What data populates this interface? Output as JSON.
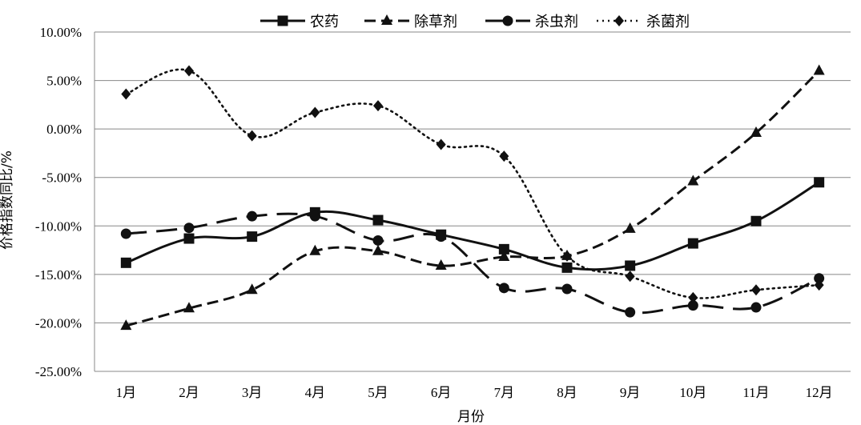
{
  "chart_data": {
    "type": "line",
    "title": "",
    "xlabel": "月份",
    "ylabel": "价格指数同比/%",
    "categories": [
      "1月",
      "2月",
      "3月",
      "4月",
      "5月",
      "6月",
      "7月",
      "8月",
      "9月",
      "10月",
      "11月",
      "12月"
    ],
    "yticks": [
      "10.00%",
      "5.00%",
      "0.00%",
      "-5.00%",
      "-10.00%",
      "-15.00%",
      "-20.00%",
      "-25.00%"
    ],
    "ylim": [
      -25,
      10
    ],
    "grid": "horizontal",
    "legend_position": "top",
    "series": [
      {
        "name": "农药",
        "style": "solid",
        "marker": "square",
        "values": [
          -13.8,
          -11.3,
          -11.1,
          -8.6,
          -9.4,
          -10.9,
          -12.4,
          -14.3,
          -14.1,
          -11.8,
          -9.5,
          -5.5
        ]
      },
      {
        "name": "除草剂",
        "style": "dashed",
        "marker": "triangle",
        "values": [
          -20.3,
          -18.5,
          -16.6,
          -12.6,
          -12.6,
          -14.1,
          -13.2,
          -13.1,
          -10.3,
          -5.4,
          -0.4,
          6.0
        ]
      },
      {
        "name": "杀虫剂",
        "style": "longdash",
        "marker": "circle",
        "values": [
          -10.8,
          -10.2,
          -9.0,
          -9.0,
          -11.5,
          -11.1,
          -16.4,
          -16.5,
          -18.9,
          -18.2,
          -18.4,
          -15.4
        ]
      },
      {
        "name": "杀菌剂",
        "style": "dotted",
        "marker": "diamond",
        "values": [
          3.6,
          6.0,
          -0.7,
          1.7,
          2.4,
          -1.6,
          -2.8,
          -13.1,
          -15.2,
          -17.4,
          -16.6,
          -16.1
        ]
      }
    ]
  }
}
